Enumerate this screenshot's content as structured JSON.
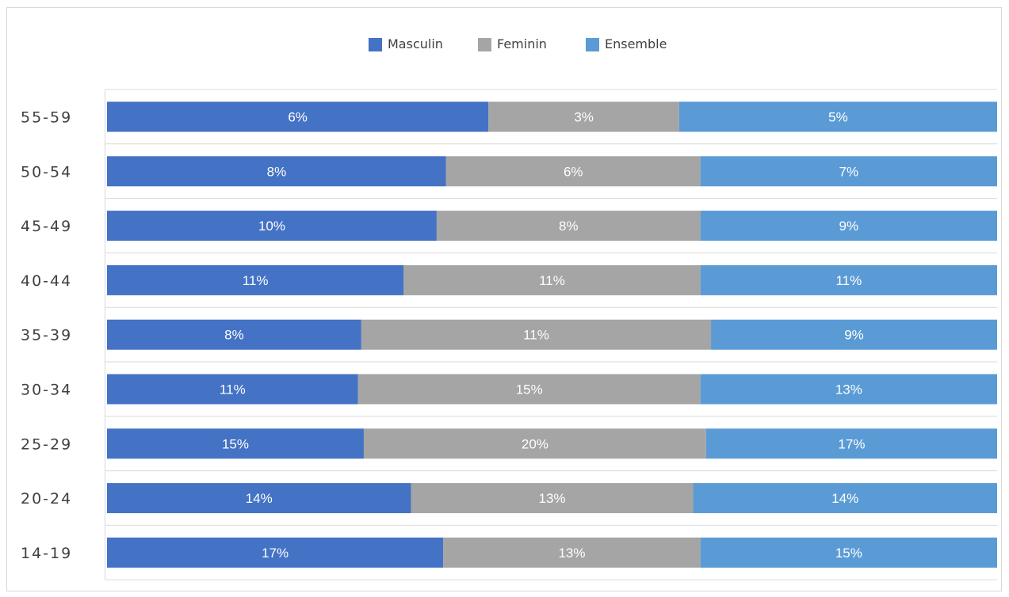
{
  "chart_data": {
    "type": "bar",
    "orientation": "horizontal",
    "stacked": "percent",
    "categories": [
      "55-59",
      "50-54",
      "45-49",
      "40-44",
      "35-39",
      "30-34",
      "25-29",
      "20-24",
      "14-19"
    ],
    "series": [
      {
        "name": "Masculin",
        "color": "#4472c4",
        "values": [
          6,
          8,
          10,
          11,
          8,
          11,
          15,
          14,
          17
        ],
        "labels": [
          "6%",
          "8%",
          "10%",
          "11%",
          "8%",
          "11%",
          "15%",
          "14%",
          "17%"
        ]
      },
      {
        "name": "Feminin",
        "color": "#a5a5a5",
        "values": [
          3,
          6,
          8,
          11,
          11,
          15,
          20,
          13,
          13
        ],
        "labels": [
          "3%",
          "6%",
          "8%",
          "11%",
          "11%",
          "15%",
          "20%",
          "13%",
          "13%"
        ]
      },
      {
        "name": "Ensemble",
        "color": "#5b9bd5",
        "values": [
          5,
          7,
          9,
          11,
          9,
          13,
          17,
          14,
          15
        ],
        "labels": [
          "5%",
          "7%",
          "9%",
          "11%",
          "9%",
          "13%",
          "17%",
          "14%",
          "15%"
        ]
      }
    ],
    "legend_position": "top",
    "grid": true,
    "title": "",
    "xlabel": "",
    "ylabel": ""
  }
}
